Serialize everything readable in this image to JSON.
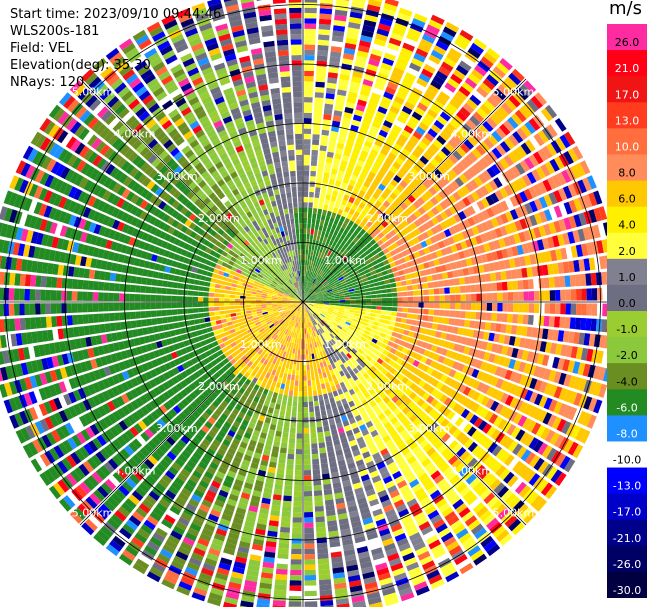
{
  "header": {
    "line1": "Start time: 2023/09/10 09:44:46",
    "line2": "WLS200s-181",
    "line3": "Field: VEL",
    "line4": "Elevation(deg): 35.30",
    "line5": "NRays: 120"
  },
  "colorbar": {
    "unit": "m/s",
    "levels": [
      {
        "label": "26.0",
        "color": "#ff2ba0",
        "text_color": "#000000"
      },
      {
        "label": "21.0",
        "color": "#ff0015",
        "text_color": "#ffffff"
      },
      {
        "label": "17.0",
        "color": "#f01414",
        "text_color": "#ffffff"
      },
      {
        "label": "13.0",
        "color": "#ff3c1e",
        "text_color": "#ffffff"
      },
      {
        "label": "10.0",
        "color": "#ff6e3c",
        "text_color": "#ffffff"
      },
      {
        "label": "8.0",
        "color": "#ff8c5a",
        "text_color": "#000000"
      },
      {
        "label": "6.0",
        "color": "#ffc800",
        "text_color": "#000000"
      },
      {
        "label": "4.0",
        "color": "#fff000",
        "text_color": "#000000"
      },
      {
        "label": "2.0",
        "color": "#ffff3c",
        "text_color": "#000000"
      },
      {
        "label": "1.0",
        "color": "#808090",
        "text_color": "#000000"
      },
      {
        "label": "0.0",
        "color": "#6e6e82",
        "text_color": "#000000"
      },
      {
        "label": "-1.0",
        "color": "#9acd32",
        "text_color": "#000000"
      },
      {
        "label": "-2.0",
        "color": "#8cc83c",
        "text_color": "#000000"
      },
      {
        "label": "-4.0",
        "color": "#6b8e23",
        "text_color": "#000000"
      },
      {
        "label": "-6.0",
        "color": "#228b22",
        "text_color": "#ffffff"
      },
      {
        "label": "-8.0",
        "color": "#1e90ff",
        "text_color": "#ffffff"
      },
      {
        "label": "-10.0",
        "color": "#ffffff",
        "text_color": "#000000"
      },
      {
        "label": "-13.0",
        "color": "#0000ff",
        "text_color": "#ffffff"
      },
      {
        "label": "-17.0",
        "color": "#0000c8",
        "text_color": "#ffffff"
      },
      {
        "label": "-21.0",
        "color": "#00008b",
        "text_color": "#ffffff"
      },
      {
        "label": "-26.0",
        "color": "#000064",
        "text_color": "#ffffff"
      },
      {
        "label": "-30.0",
        "color": "#000040",
        "text_color": "#ffffff"
      }
    ]
  },
  "chart_data": {
    "type": "heatmap",
    "projection": "polar-ppi",
    "field": "VEL",
    "nrays": 120,
    "range_rings_km": [
      1,
      2,
      3,
      4,
      5
    ],
    "range_ring_labels": [
      "1.00km",
      "2.00km",
      "3.00km",
      "4.00km",
      "5.00km"
    ],
    "max_range_km": 5.3,
    "pattern": "Approximate radial-velocity field: green (negative, -2 to -8 m/s) dominates the west and south sectors, yellow/orange (positive, 2 to 10 m/s) dominates the east and north-east sectors, gray near-zero velocities along the transition; a small green core near 1 km to the north-east and an orange/yellow core near 1 km to the south-west; outer gates beyond ~3 km are noisy with scattered high-magnitude colors."
  }
}
